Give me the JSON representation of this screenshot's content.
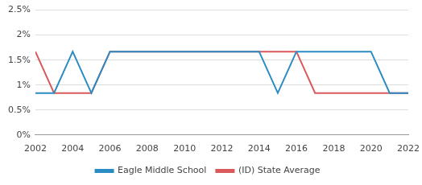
{
  "chart_data": {
    "type": "line",
    "x": [
      2002,
      2003,
      2004,
      2005,
      2006,
      2007,
      2008,
      2009,
      2010,
      2011,
      2012,
      2013,
      2014,
      2015,
      2016,
      2017,
      2018,
      2019,
      2020,
      2021,
      2022
    ],
    "series": [
      {
        "name": "Eagle Middle School",
        "color": "#2b8cc4",
        "values": [
          0.84,
          0.84,
          1.67,
          0.84,
          1.67,
          1.67,
          1.67,
          1.67,
          1.67,
          1.67,
          1.67,
          1.67,
          1.67,
          0.84,
          1.67,
          1.67,
          1.67,
          1.67,
          1.67,
          0.84,
          0.84
        ]
      },
      {
        "name": "(ID) State Average",
        "color": "#d9595c",
        "values": [
          1.67,
          0.84,
          0.84,
          0.84,
          1.67,
          1.67,
          1.67,
          1.67,
          1.67,
          1.67,
          1.67,
          1.67,
          1.67,
          1.67,
          1.67,
          0.84,
          0.84,
          0.84,
          0.84,
          0.84,
          0.84
        ]
      }
    ],
    "xlim": [
      2002,
      2022
    ],
    "xticks": [
      2002,
      2004,
      2006,
      2008,
      2010,
      2012,
      2014,
      2016,
      2018,
      2020,
      2022
    ],
    "ylim": [
      0,
      2.5
    ],
    "yticks": [
      {
        "value": 0,
        "label": "0%"
      },
      {
        "value": 0.5,
        "label": "0.5%"
      },
      {
        "value": 1,
        "label": "1%"
      },
      {
        "value": 1.5,
        "label": "1.5%"
      },
      {
        "value": 2,
        "label": "2%"
      },
      {
        "value": 2.5,
        "label": "2.5%"
      }
    ],
    "grid": true,
    "legend": "bottom"
  }
}
